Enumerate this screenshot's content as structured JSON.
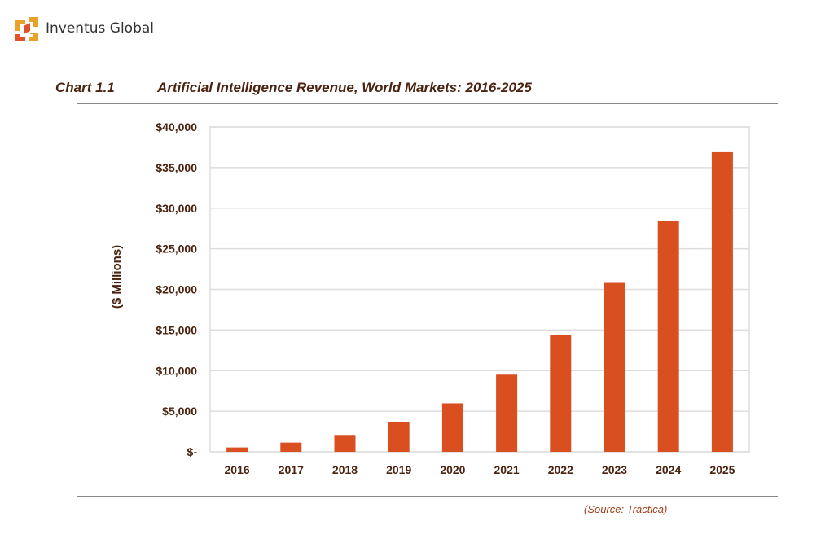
{
  "header": {
    "brand": "Inventus Global",
    "logo_colors": [
      "#e8a22b",
      "#e0502a"
    ]
  },
  "chart_data": {
    "type": "bar",
    "label": "Chart 1.1",
    "title": "Artificial Intelligence Revenue, World Markets: 2016-2025",
    "xlabel": "",
    "ylabel": "($ Millions)",
    "categories": [
      "2016",
      "2017",
      "2018",
      "2019",
      "2020",
      "2021",
      "2022",
      "2023",
      "2024",
      "2025"
    ],
    "values": [
      540,
      1140,
      2080,
      3690,
      5970,
      9500,
      14360,
      20800,
      28460,
      36900
    ],
    "ylim": [
      0,
      40000
    ],
    "yticks": [
      0,
      5000,
      10000,
      15000,
      20000,
      25000,
      30000,
      35000,
      40000
    ],
    "ytick_labels": [
      "$-",
      "$5,000",
      "$10,000",
      "$15,000",
      "$20,000",
      "$25,000",
      "$30,000",
      "$35,000",
      "$40,000"
    ],
    "grid": true,
    "bar_color": "#d94f20",
    "source": "(Source: Tractica)"
  }
}
